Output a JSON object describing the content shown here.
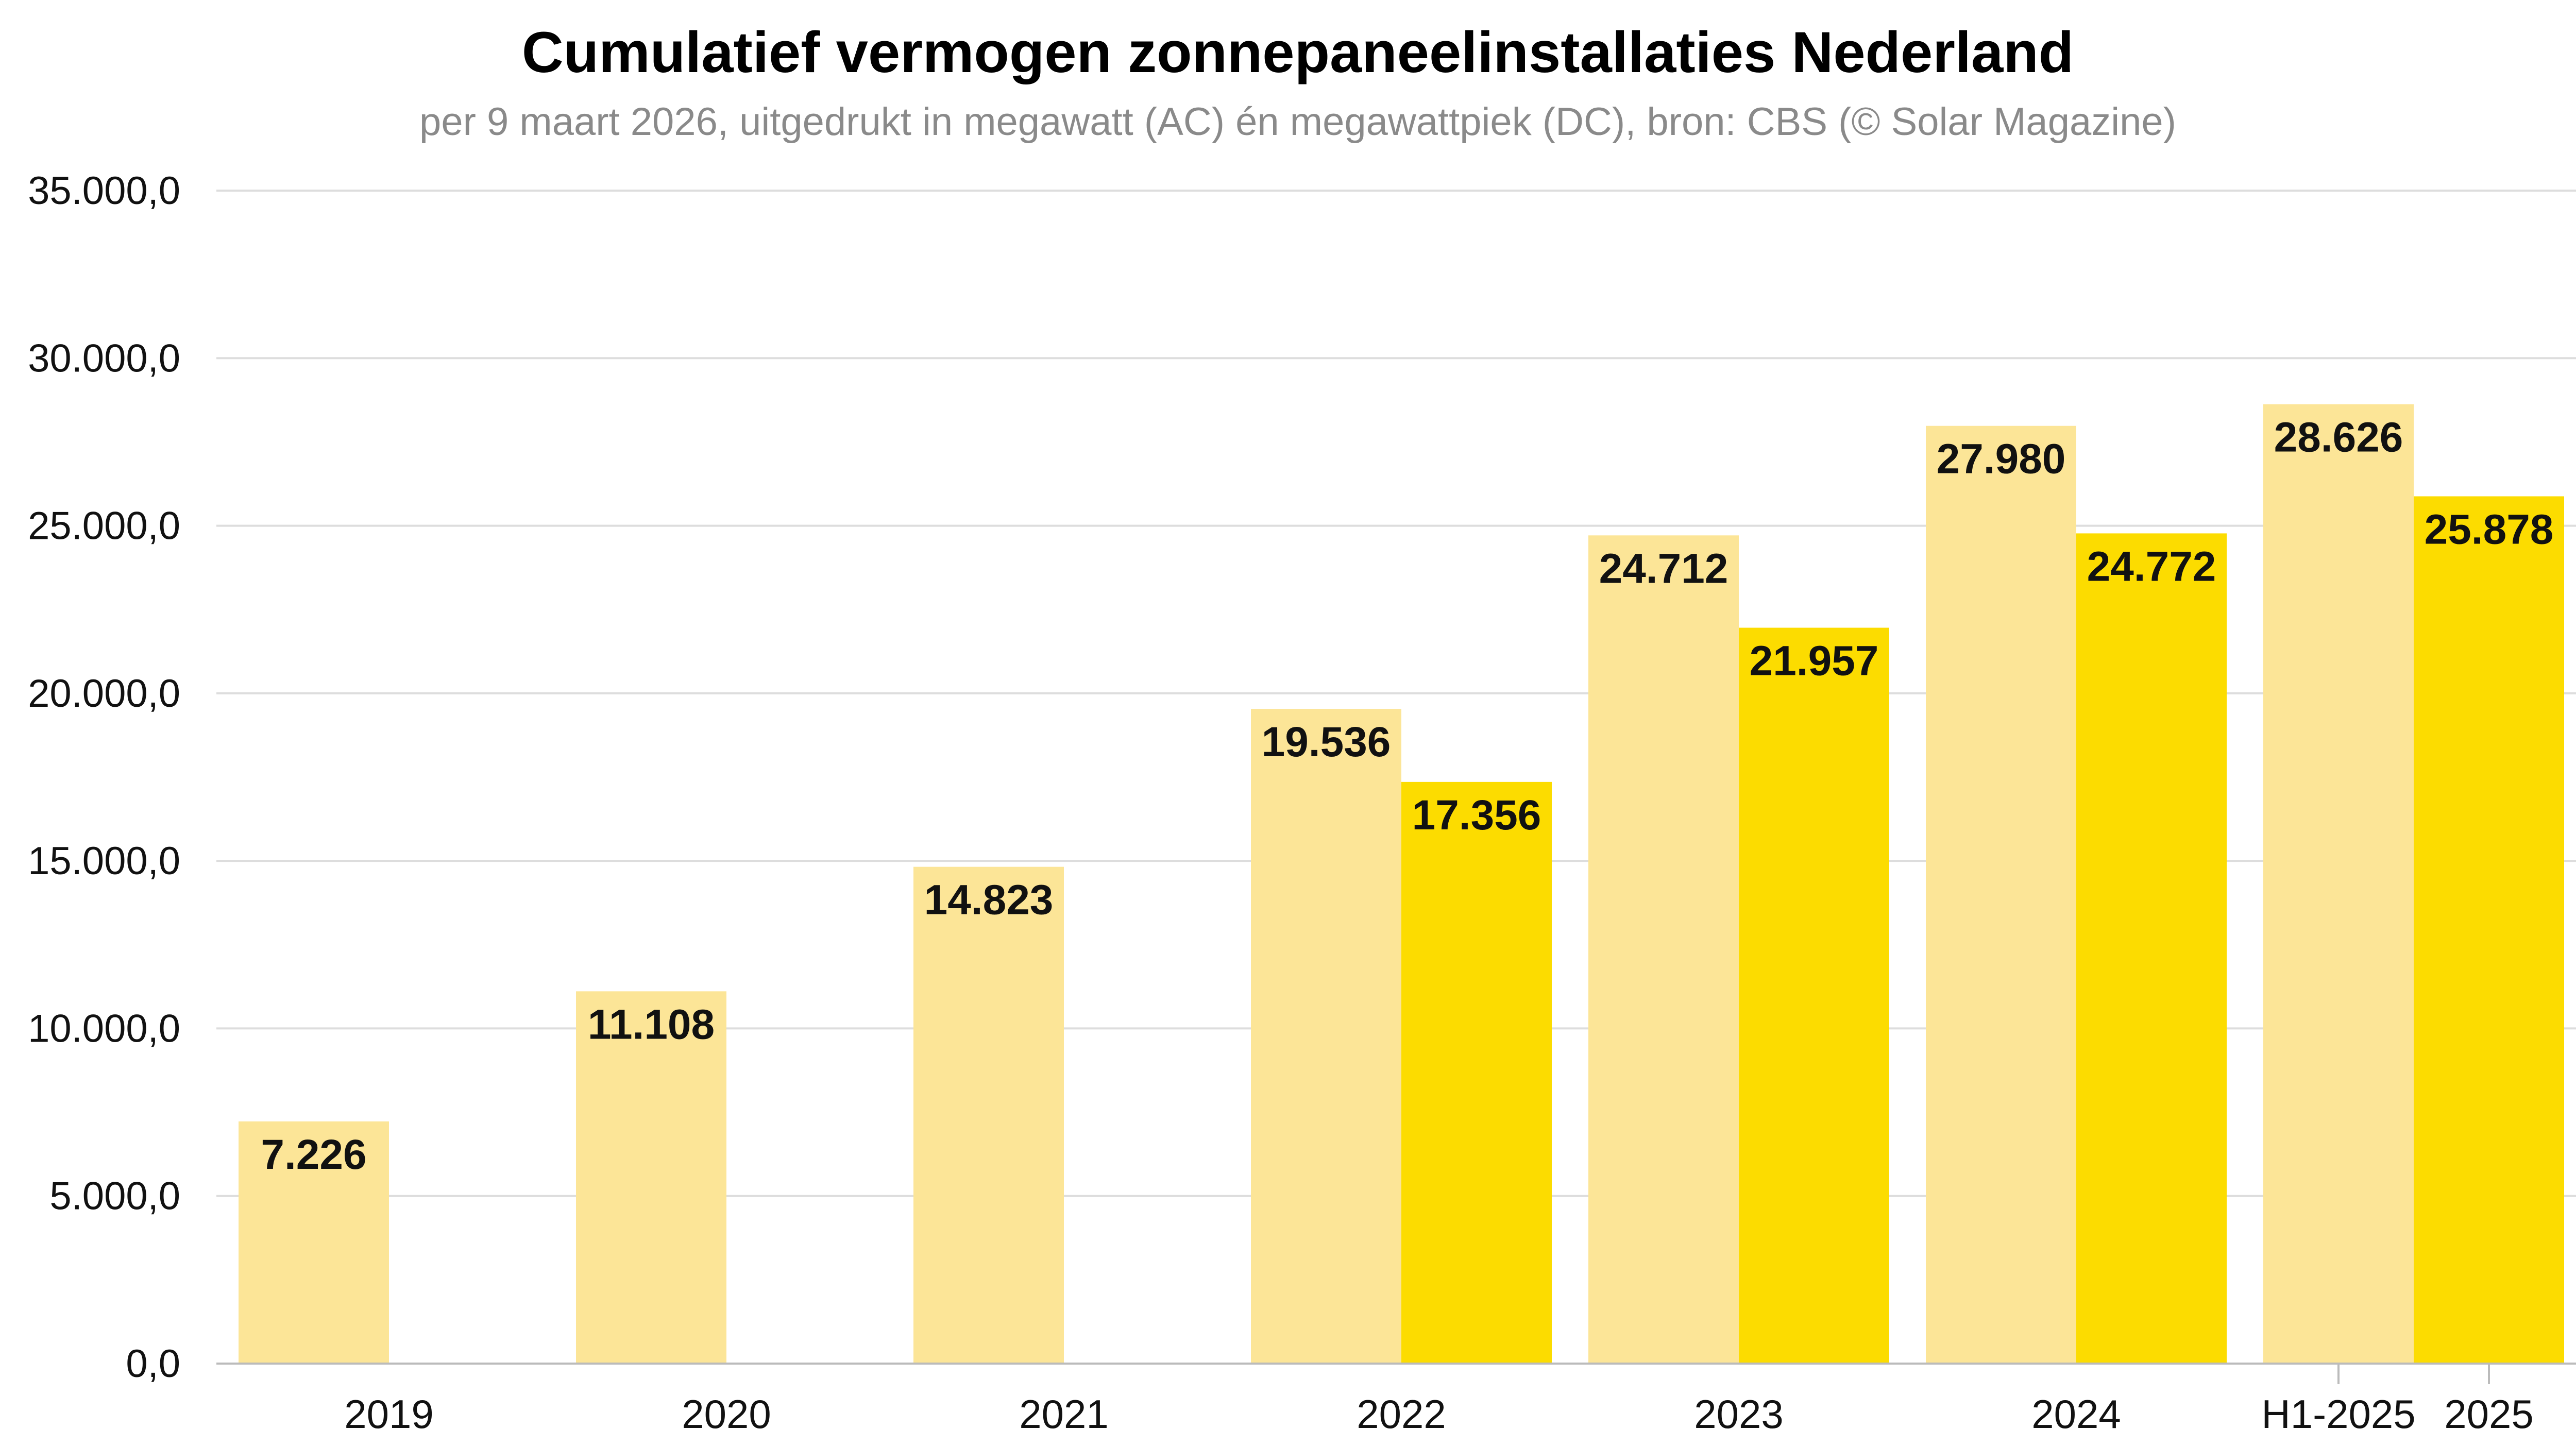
{
  "chart_data": {
    "type": "bar",
    "title": "Cumulatief vermogen zonnepaneelinstallaties Nederland",
    "subtitle": "per 9 maart 2026, uitgedrukt in megawatt (AC) én megawattpiek (DC), bron: CBS (© Solar Magazine)",
    "xlabel": "",
    "ylabel": "",
    "ylim": [
      0,
      35000
    ],
    "y_ticks": [
      "0,0",
      "5.000,0",
      "10.000,0",
      "15.000,0",
      "20.000,0",
      "25.000,0",
      "30.000,0",
      "35.000,0"
    ],
    "grid": true,
    "legend": "none",
    "colors": {
      "mwp_dc": "#FCE597",
      "mw_ac": "#FCDC00",
      "grid": "#dddddd",
      "axis": "#bbbbbb"
    },
    "bars": [
      {
        "category": "2019",
        "series": "megawattpiek (DC)",
        "value": 7226,
        "label": "7.226"
      },
      {
        "category": "2020",
        "series": "megawattpiek (DC)",
        "value": 11108,
        "label": "11.108"
      },
      {
        "category": "2021",
        "series": "megawattpiek (DC)",
        "value": 14823,
        "label": "14.823"
      },
      {
        "category": "2022",
        "series": "megawattpiek (DC)",
        "value": 19536,
        "label": "19.536"
      },
      {
        "category": "2022",
        "series": "megawatt (AC)",
        "value": 17356,
        "label": "17.356"
      },
      {
        "category": "2023",
        "series": "megawattpiek (DC)",
        "value": 24712,
        "label": "24.712"
      },
      {
        "category": "2023",
        "series": "megawatt (AC)",
        "value": 21957,
        "label": "21.957"
      },
      {
        "category": "2024",
        "series": "megawattpiek (DC)",
        "value": 27980,
        "label": "27.980"
      },
      {
        "category": "2024",
        "series": "megawatt (AC)",
        "value": 24772,
        "label": "24.772"
      },
      {
        "category": "H1-2025",
        "series": "megawattpiek (DC)",
        "value": 28626,
        "label": "28.626"
      },
      {
        "category": "2025",
        "series": "megawatt (AC)",
        "value": 25878,
        "label": "25.878"
      }
    ],
    "x_tick_labels": [
      "2019",
      "2020",
      "2021",
      "2022",
      "2023",
      "2024",
      "H1-2025",
      "2025"
    ]
  }
}
